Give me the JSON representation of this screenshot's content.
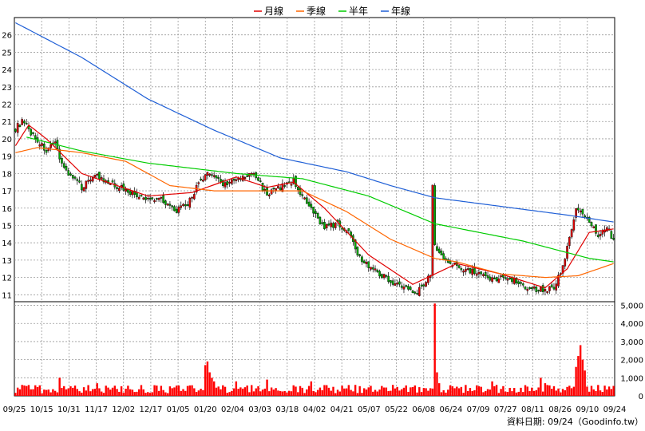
{
  "legend": [
    {
      "label": "月線",
      "color": "#e00000"
    },
    {
      "label": "季線",
      "color": "#ff6600"
    },
    {
      "label": "半年",
      "color": "#00cc00"
    },
    {
      "label": "年線",
      "color": "#1f5fd6"
    }
  ],
  "footer": "資料日期: 09/24（Goodinfo.tw）",
  "colors": {
    "up": "#e00000",
    "down": "#00aa00",
    "volume": "#ff0000",
    "grid": "#9a9a9a"
  },
  "chart_data": [
    {
      "type": "candlestick",
      "name": "price",
      "ylim": [
        10.6,
        27.0
      ],
      "yticks": [
        11,
        12,
        13,
        14,
        15,
        16,
        17,
        18,
        19,
        20,
        21,
        22,
        23,
        24,
        25,
        26
      ],
      "xticks": [
        "09/25",
        "10/15",
        "10/31",
        "11/17",
        "12/02",
        "12/17",
        "01/05",
        "01/20",
        "02/04",
        "03/03",
        "03/18",
        "04/02",
        "04/21",
        "05/07",
        "05/22",
        "06/08",
        "06/24",
        "07/09",
        "07/27",
        "08/11",
        "08/26",
        "09/10",
        "09/24"
      ],
      "grid": true,
      "close_anchors": [
        [
          0,
          20.6
        ],
        [
          3,
          21.0
        ],
        [
          8,
          20.2
        ],
        [
          14,
          19.3
        ],
        [
          18,
          19.7
        ],
        [
          22,
          18.3
        ],
        [
          30,
          17.2
        ],
        [
          36,
          18.0
        ],
        [
          40,
          17.5
        ],
        [
          48,
          17.2
        ],
        [
          58,
          16.5
        ],
        [
          66,
          16.6
        ],
        [
          72,
          15.8
        ],
        [
          78,
          16.2
        ],
        [
          82,
          17.2
        ],
        [
          88,
          18.1
        ],
        [
          94,
          17.4
        ],
        [
          100,
          17.6
        ],
        [
          108,
          18.0
        ],
        [
          114,
          16.8
        ],
        [
          120,
          17.2
        ],
        [
          126,
          17.6
        ],
        [
          132,
          16.2
        ],
        [
          140,
          14.9
        ],
        [
          146,
          15.1
        ],
        [
          152,
          14.5
        ],
        [
          156,
          13.1
        ],
        [
          162,
          12.5
        ],
        [
          170,
          11.8
        ],
        [
          176,
          11.4
        ],
        [
          182,
          11.2
        ],
        [
          186,
          11.8
        ],
        [
          188,
          12.1
        ],
        [
          189,
          17.5
        ],
        [
          190,
          13.8
        ],
        [
          196,
          12.8
        ],
        [
          202,
          12.6
        ],
        [
          208,
          12.3
        ],
        [
          214,
          11.9
        ],
        [
          220,
          12.0
        ],
        [
          226,
          11.9
        ],
        [
          232,
          11.4
        ],
        [
          236,
          11.3
        ],
        [
          244,
          11.4
        ],
        [
          248,
          12.6
        ],
        [
          250,
          13.7
        ],
        [
          254,
          16.0
        ],
        [
          258,
          15.5
        ],
        [
          264,
          14.4
        ],
        [
          268,
          14.8
        ],
        [
          271,
          14.2
        ]
      ],
      "ma_month_anchors": [
        [
          0,
          19.6
        ],
        [
          6,
          20.8
        ],
        [
          14,
          20.0
        ],
        [
          30,
          18.0
        ],
        [
          60,
          16.7
        ],
        [
          80,
          16.9
        ],
        [
          100,
          17.8
        ],
        [
          114,
          17.2
        ],
        [
          126,
          17.5
        ],
        [
          140,
          16.0
        ],
        [
          160,
          13.3
        ],
        [
          180,
          11.6
        ],
        [
          190,
          12.2
        ],
        [
          200,
          12.8
        ],
        [
          220,
          12.2
        ],
        [
          240,
          11.4
        ],
        [
          250,
          12.5
        ],
        [
          260,
          14.6
        ],
        [
          271,
          14.8
        ]
      ],
      "ma_quarter_anchors": [
        [
          0,
          19.2
        ],
        [
          10,
          19.5
        ],
        [
          30,
          19.2
        ],
        [
          50,
          18.7
        ],
        [
          70,
          17.3
        ],
        [
          90,
          17.0
        ],
        [
          110,
          17.0
        ],
        [
          130,
          17.0
        ],
        [
          150,
          15.8
        ],
        [
          170,
          14.2
        ],
        [
          190,
          13.1
        ],
        [
          200,
          12.9
        ],
        [
          220,
          12.2
        ],
        [
          240,
          12.0
        ],
        [
          255,
          12.1
        ],
        [
          271,
          12.8
        ]
      ],
      "ma_half_anchors": [
        [
          5,
          20.1
        ],
        [
          30,
          19.3
        ],
        [
          60,
          18.6
        ],
        [
          100,
          18.0
        ],
        [
          130,
          17.7
        ],
        [
          160,
          16.7
        ],
        [
          190,
          15.1
        ],
        [
          230,
          14.1
        ],
        [
          260,
          13.1
        ],
        [
          271,
          12.9
        ]
      ],
      "ma_year_anchors": [
        [
          0,
          26.7
        ],
        [
          30,
          24.7
        ],
        [
          60,
          22.3
        ],
        [
          90,
          20.5
        ],
        [
          120,
          18.9
        ],
        [
          150,
          18.1
        ],
        [
          170,
          17.3
        ],
        [
          190,
          16.6
        ],
        [
          220,
          16.1
        ],
        [
          250,
          15.6
        ],
        [
          271,
          15.2
        ]
      ]
    },
    {
      "type": "bar",
      "name": "volume",
      "ylim": [
        0,
        5200
      ],
      "yticks": [
        0,
        1000,
        2000,
        3000,
        4000,
        5000
      ],
      "ytick_labels": [
        "0",
        "1,000",
        "2,000",
        "3,000",
        "4,000",
        "5,000"
      ],
      "baseline": 420,
      "spikes": [
        [
          20,
          1000
        ],
        [
          37,
          700
        ],
        [
          86,
          1700
        ],
        [
          87,
          1900
        ],
        [
          88,
          1300
        ],
        [
          89,
          1000
        ],
        [
          90,
          800
        ],
        [
          100,
          800
        ],
        [
          114,
          900
        ],
        [
          134,
          800
        ],
        [
          190,
          5100
        ],
        [
          191,
          1300
        ],
        [
          192,
          700
        ],
        [
          216,
          800
        ],
        [
          238,
          1000
        ],
        [
          240,
          700
        ],
        [
          254,
          1600
        ],
        [
          255,
          2200
        ],
        [
          256,
          2800
        ],
        [
          257,
          2000
        ],
        [
          258,
          1400
        ]
      ]
    }
  ]
}
